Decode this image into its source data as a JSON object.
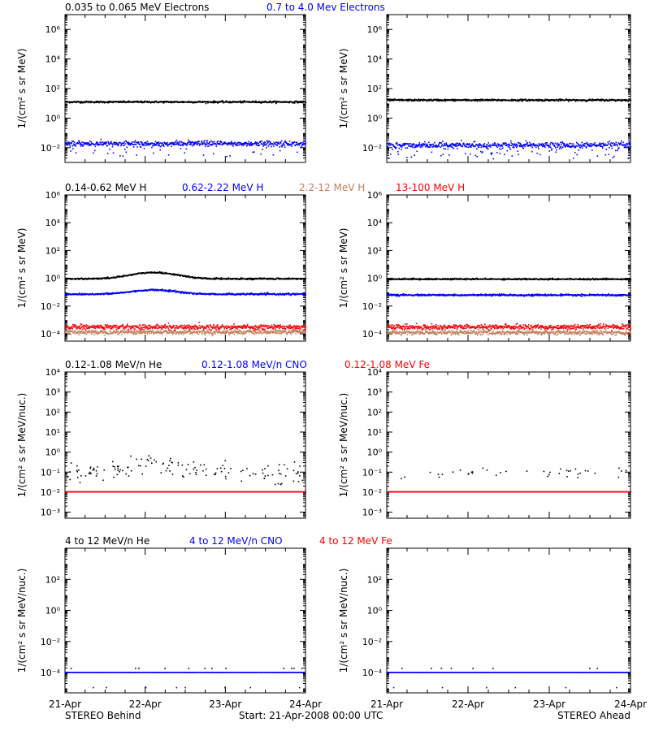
{
  "figure": {
    "left_label": "STEREO Behind",
    "right_label": "STEREO Ahead",
    "start_label": "Start: 21-Apr-2008 00:00 UTC",
    "x_ticks": [
      "21-Apr",
      "22-Apr",
      "23-Apr",
      "24-Apr"
    ]
  },
  "colors": {
    "black": "#000000",
    "blue": "#0000ff",
    "tan": "#c08060",
    "red": "#ff0000"
  },
  "chart_data": [
    {
      "id": "electrons",
      "type": "scatter",
      "yscale": "log",
      "ylabel": "1/(cm² s sr MeV)",
      "ylim": [
        0.001,
        10000000
      ],
      "yticks": [
        {
          "v": 0.01,
          "label": "10⁻²"
        },
        {
          "v": 1,
          "label": "10⁰"
        },
        {
          "v": 100,
          "label": "10²"
        },
        {
          "v": 10000,
          "label": "10⁴"
        },
        {
          "v": 1000000,
          "label": "10⁶"
        }
      ],
      "xlim": [
        0,
        3
      ],
      "legend": [
        {
          "text": "0.035 to 0.065 MeV Electrons",
          "color": "black"
        },
        {
          "text": "0.7 to 4.0 Mev Electrons",
          "color": "blue"
        }
      ],
      "series": [
        {
          "spacecraft": "behind",
          "color": "black",
          "base": 12,
          "scatter": 0.06,
          "bump": null
        },
        {
          "spacecraft": "behind",
          "color": "blue",
          "base": 0.018,
          "scatter": 0.18,
          "outliers": 0.06,
          "bump": null
        },
        {
          "spacecraft": "ahead",
          "color": "black",
          "base": 16,
          "scatter": 0.06,
          "bump": null
        },
        {
          "spacecraft": "ahead",
          "color": "blue",
          "base": 0.014,
          "scatter": 0.2,
          "outliers": 0.08,
          "bump": null
        }
      ]
    },
    {
      "id": "protons",
      "type": "scatter",
      "yscale": "log",
      "ylabel": "1/(cm² s sr MeV)",
      "ylim": [
        3e-05,
        1000000
      ],
      "yticks": [
        {
          "v": 0.0001,
          "label": "10⁻⁴"
        },
        {
          "v": 0.01,
          "label": "10⁻²"
        },
        {
          "v": 1,
          "label": "10⁰"
        },
        {
          "v": 100,
          "label": "10²"
        },
        {
          "v": 10000,
          "label": "10⁴"
        },
        {
          "v": 1000000,
          "label": "10⁶"
        }
      ],
      "xlim": [
        0,
        3
      ],
      "legend": [
        {
          "text": "0.14-0.62 MeV H",
          "color": "black"
        },
        {
          "text": "0.62-2.22 MeV H",
          "color": "blue"
        },
        {
          "text": "2.2-12 MeV H",
          "color": "tan"
        },
        {
          "text": "13-100 MeV H",
          "color": "red"
        }
      ],
      "series": [
        {
          "spacecraft": "behind",
          "color": "black",
          "base": 0.9,
          "scatter": 0.05,
          "bump": {
            "center": 1.1,
            "width": 0.35,
            "factor": 2.8
          }
        },
        {
          "spacecraft": "behind",
          "color": "blue",
          "base": 0.07,
          "scatter": 0.06,
          "bump": {
            "center": 1.1,
            "width": 0.35,
            "factor": 2.0
          }
        },
        {
          "spacecraft": "behind",
          "color": "tan",
          "base": 0.00013,
          "scatter": 0.15,
          "bump": null
        },
        {
          "spacecraft": "behind",
          "color": "red",
          "base": 0.0003,
          "scatter": 0.18,
          "bump": null
        },
        {
          "spacecraft": "ahead",
          "color": "black",
          "base": 0.85,
          "scatter": 0.05,
          "bump": null
        },
        {
          "spacecraft": "ahead",
          "color": "blue",
          "base": 0.06,
          "scatter": 0.06,
          "bump": null
        },
        {
          "spacecraft": "ahead",
          "color": "tan",
          "base": 0.00012,
          "scatter": 0.15,
          "bump": null
        },
        {
          "spacecraft": "ahead",
          "color": "red",
          "base": 0.0003,
          "scatter": 0.18,
          "bump": null
        }
      ]
    },
    {
      "id": "heavy_low",
      "type": "scatter",
      "yscale": "log",
      "ylabel": "1/(cm² s sr MeV/nuc.)",
      "ylim": [
        0.0005,
        10000
      ],
      "yticks": [
        {
          "v": 0.001,
          "label": "10⁻³"
        },
        {
          "v": 0.01,
          "label": "10⁻²"
        },
        {
          "v": 0.1,
          "label": "10⁻¹"
        },
        {
          "v": 1,
          "label": "10⁰"
        },
        {
          "v": 10,
          "label": "10¹"
        },
        {
          "v": 100,
          "label": "10²"
        },
        {
          "v": 1000,
          "label": "10³"
        },
        {
          "v": 10000,
          "label": "10⁴"
        }
      ],
      "xlim": [
        0,
        3
      ],
      "legend": [
        {
          "text": "0.12-1.08 MeV/n He",
          "color": "black"
        },
        {
          "text": "0.12-1.08 MeV/n CNO",
          "color": "blue"
        },
        {
          "text": "0.12-1.08 MeV Fe",
          "color": "red"
        }
      ],
      "series": [
        {
          "spacecraft": "behind",
          "color": "black",
          "base": 0.045,
          "scatter": 0.0,
          "sparse": {
            "level": 0.09,
            "spread": 0.25,
            "count": 140,
            "bump": {
              "center": 1.1,
              "width": 0.45,
              "factor": 3
            }
          }
        },
        {
          "spacecraft": "behind",
          "color": "blue",
          "base": 0.01,
          "scatter": 0.0
        },
        {
          "spacecraft": "behind",
          "color": "red",
          "base": 0.01,
          "scatter": 0.0,
          "dashed": true
        },
        {
          "spacecraft": "ahead",
          "color": "black",
          "base": 0.045,
          "scatter": 0.0,
          "sparse": {
            "level": 0.09,
            "spread": 0.15,
            "count": 40,
            "bump": null
          }
        },
        {
          "spacecraft": "ahead",
          "color": "blue",
          "base": 0.01,
          "scatter": 0.0
        },
        {
          "spacecraft": "ahead",
          "color": "red",
          "base": 0.01,
          "scatter": 0.0,
          "dashed": true
        }
      ]
    },
    {
      "id": "heavy_high",
      "type": "scatter",
      "yscale": "log",
      "ylabel": "1/(cm² s sr MeV/nuc.)",
      "ylim": [
        5e-06,
        10000
      ],
      "yticks": [
        {
          "v": 0.0001,
          "label": "10⁻⁴"
        },
        {
          "v": 0.01,
          "label": "10⁻²"
        },
        {
          "v": 1,
          "label": "10⁰"
        },
        {
          "v": 100,
          "label": "10²"
        }
      ],
      "xlim": [
        0,
        3
      ],
      "legend": [
        {
          "text": "4 to 12 MeV/n He",
          "color": "black"
        },
        {
          "text": "4 to 12 MeV/n CNO",
          "color": "blue"
        },
        {
          "text": "4 to 12 MeV Fe",
          "color": "red"
        }
      ],
      "series": [
        {
          "spacecraft": "behind",
          "color": "blue",
          "base": 0.0001,
          "scatter": 0.0,
          "dashed": true
        },
        {
          "spacecraft": "behind",
          "color": "black",
          "base": 0.0001,
          "scatter": 0.0,
          "sparse": {
            "level": 0.00018,
            "spread": 0.0,
            "count": 12,
            "bump": null
          }
        },
        {
          "spacecraft": "behind",
          "color": "blue",
          "base": 1.05e-05,
          "scatter": 0.0,
          "sparse": {
            "level": 1.05e-05,
            "spread": 0.0,
            "count": 8,
            "bump": null
          }
        },
        {
          "spacecraft": "ahead",
          "color": "blue",
          "base": 0.0001,
          "scatter": 0.0,
          "dashed": true
        },
        {
          "spacecraft": "ahead",
          "color": "black",
          "base": 0.0001,
          "scatter": 0.0,
          "sparse": {
            "level": 0.00018,
            "spread": 0.0,
            "count": 8,
            "bump": null
          }
        },
        {
          "spacecraft": "ahead",
          "color": "blue",
          "base": 1.05e-05,
          "scatter": 0.0,
          "sparse": {
            "level": 1.05e-05,
            "spread": 0.0,
            "count": 6,
            "bump": null
          }
        }
      ]
    }
  ]
}
